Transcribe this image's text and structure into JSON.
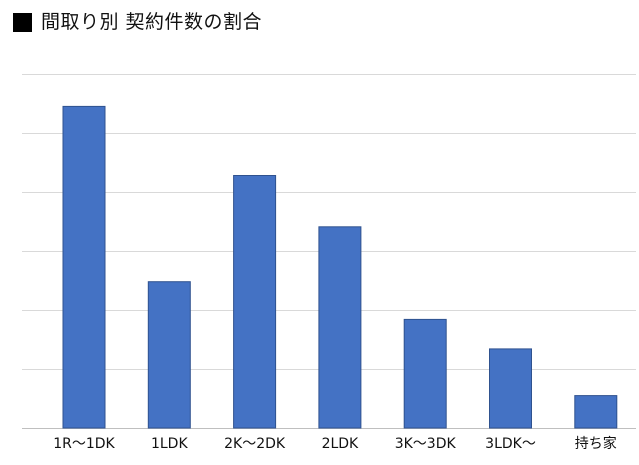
{
  "chart_data": {
    "type": "bar",
    "title": "■ 間取り別 契約件数の割合",
    "title_text": "間取り別 契約件数の割合",
    "categories": [
      "1R～1DK",
      "1LDK",
      "2K～2DK",
      "2LDK",
      "3K～3DK",
      "3LDK～",
      "持ち家"
    ],
    "values": [
      5.45,
      2.48,
      4.28,
      3.41,
      1.84,
      1.34,
      0.55
    ],
    "ylim": [
      0,
      6
    ],
    "yticks": [
      0,
      1,
      2,
      3,
      4,
      5,
      6
    ],
    "show_ytick_labels": false,
    "grid": true,
    "bar_color": "#4472C4",
    "bar_edge_color": "#2F528F",
    "grid_color": "#D9D9D9"
  }
}
